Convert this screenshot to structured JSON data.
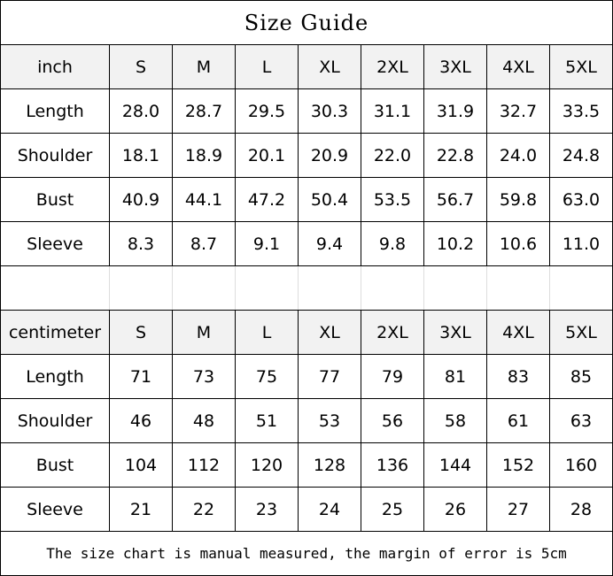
{
  "title": "Size Guide",
  "sizes": [
    "S",
    "M",
    "L",
    "XL",
    "2XL",
    "3XL",
    "4XL",
    "5XL"
  ],
  "tables": [
    {
      "unit": "inch",
      "rows": [
        {
          "label": "Length",
          "values": [
            "28.0",
            "28.7",
            "29.5",
            "30.3",
            "31.1",
            "31.9",
            "32.7",
            "33.5"
          ]
        },
        {
          "label": "Shoulder",
          "values": [
            "18.1",
            "18.9",
            "20.1",
            "20.9",
            "22.0",
            "22.8",
            "24.0",
            "24.8"
          ]
        },
        {
          "label": "Bust",
          "values": [
            "40.9",
            "44.1",
            "47.2",
            "50.4",
            "53.5",
            "56.7",
            "59.8",
            "63.0"
          ]
        },
        {
          "label": "Sleeve",
          "values": [
            "8.3",
            "8.7",
            "9.1",
            "9.4",
            "9.8",
            "10.2",
            "10.6",
            "11.0"
          ]
        }
      ]
    },
    {
      "unit": "centimeter",
      "rows": [
        {
          "label": "Length",
          "values": [
            "71",
            "73",
            "75",
            "77",
            "79",
            "81",
            "83",
            "85"
          ]
        },
        {
          "label": "Shoulder",
          "values": [
            "46",
            "48",
            "51",
            "53",
            "56",
            "58",
            "61",
            "63"
          ]
        },
        {
          "label": "Bust",
          "values": [
            "104",
            "112",
            "120",
            "128",
            "136",
            "144",
            "152",
            "160"
          ]
        },
        {
          "label": "Sleeve",
          "values": [
            "21",
            "22",
            "23",
            "24",
            "25",
            "26",
            "27",
            "28"
          ]
        }
      ]
    }
  ],
  "footer": "The size chart is manual measured, the margin of error is 5cm",
  "colors": {
    "header_bg": "#f2f2f2",
    "border": "#000000"
  }
}
